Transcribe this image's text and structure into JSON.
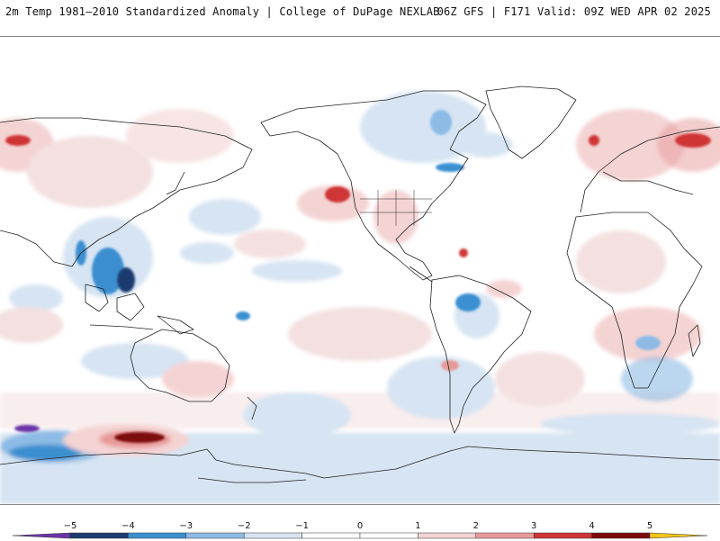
{
  "header": {
    "title_left": "2m Temp 1981–2010 Standardized Anomaly | College of DuPage NEXLAB",
    "title_right": "06Z GFS | F171 Valid: 09Z WED APR 02 2025"
  },
  "map": {
    "projection": "global equirectangular, Pacific-centered",
    "background_color": "#ffffff",
    "border_color": "#222222",
    "features": [
      {
        "name": "warm-anomaly",
        "region": "Antarctic sector near 150E",
        "level": 4
      },
      {
        "name": "warm-anomaly",
        "region": "Southwestern United States",
        "level": 3
      },
      {
        "name": "warm-anomaly",
        "region": "Central Asia",
        "level": 2
      },
      {
        "name": "warm-anomaly",
        "region": "Northern Europe",
        "level": 2
      },
      {
        "name": "cold-anomaly",
        "region": "Maritime Southeast Asia",
        "level": -3
      },
      {
        "name": "cold-anomaly",
        "region": "Antarctic coast southwest Pacific",
        "level": -3
      },
      {
        "name": "cold-anomaly",
        "region": "Eastern Canada",
        "level": -2
      },
      {
        "name": "cold-anomaly",
        "region": "Central South America",
        "level": -2
      },
      {
        "name": "cold-anomaly",
        "region": "Southern Africa",
        "level": -2
      }
    ]
  },
  "colorbar": {
    "ticks": [
      "−5",
      "−4",
      "−3",
      "−2",
      "−1",
      "0",
      "1",
      "2",
      "3",
      "4",
      "5"
    ],
    "colors": [
      "#1e3b70",
      "#3a8fd0",
      "#8dbbe5",
      "#d6e4f3",
      "#ffffff",
      "#ffffff",
      "#f4d3d3",
      "#e79a9a",
      "#cf3535",
      "#7e0b0b"
    ],
    "low_extend_color": "#6a35a8",
    "high_extend_color": "#f2c418"
  }
}
